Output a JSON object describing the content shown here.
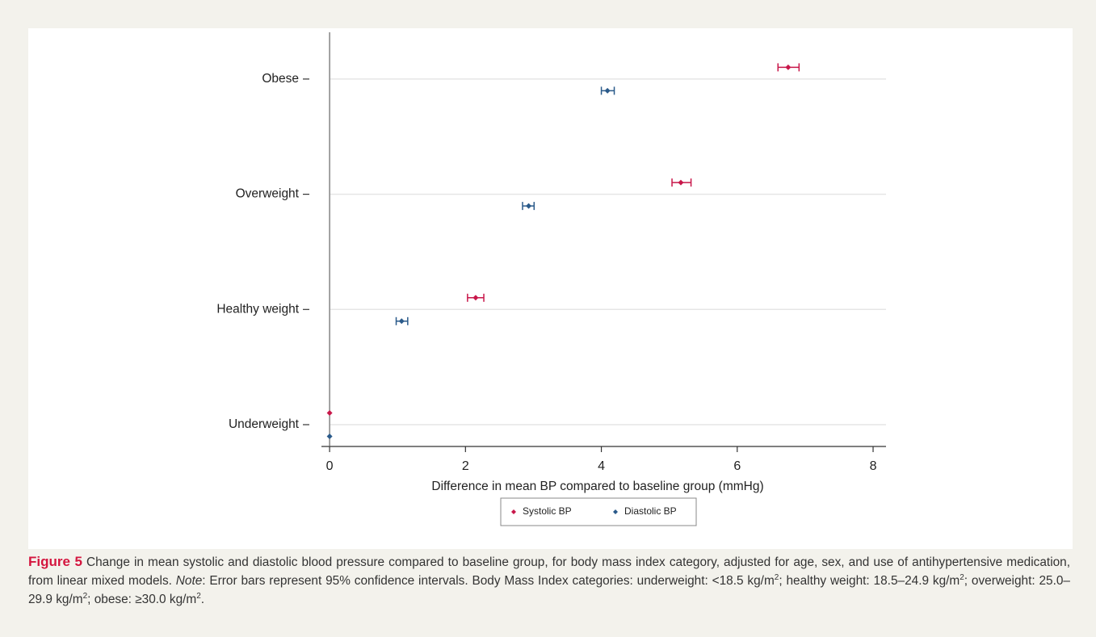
{
  "chart_data": {
    "type": "dot",
    "xlabel": "Difference in mean BP compared to baseline group (mmHg)",
    "categories": [
      "Underweight",
      "Healthy weight",
      "Overweight",
      "Obese"
    ],
    "series": [
      {
        "name": "Systolic BP",
        "color": "#c8174a",
        "values": [
          0,
          2.15,
          5.17,
          6.75
        ],
        "ci_low": [
          null,
          2.03,
          5.04,
          6.6
        ],
        "ci_high": [
          null,
          2.27,
          5.32,
          6.91
        ]
      },
      {
        "name": "Diastolic BP",
        "color": "#2a5a8a",
        "values": [
          0,
          1.06,
          2.93,
          4.09
        ],
        "ci_low": [
          null,
          0.98,
          2.84,
          4.0
        ],
        "ci_high": [
          null,
          1.15,
          3.01,
          4.19
        ]
      }
    ],
    "xlim": [
      -0.12,
      8.19
    ],
    "xticks": [
      0,
      2,
      4,
      6,
      8
    ],
    "grid": true,
    "legend": "bottom"
  },
  "caption": {
    "segments": [
      "Figure 5",
      " Change in mean systolic and diastolic blood pressure compared to baseline group, for body mass index category, adjusted for age, sex, and use of antihypertensive medication, from linear mixed models. ",
      "Note",
      ": Error bars represent 95% confidence intervals. Body Mass Index categories: underweight: <18.5 kg/m",
      "2",
      "; healthy weight: 18.5–24.9 kg/m",
      "2",
      "; overweight: 25.0–29.9 kg/m",
      "2",
      "; obese: ≥30.0 kg/m",
      "2",
      "."
    ]
  }
}
